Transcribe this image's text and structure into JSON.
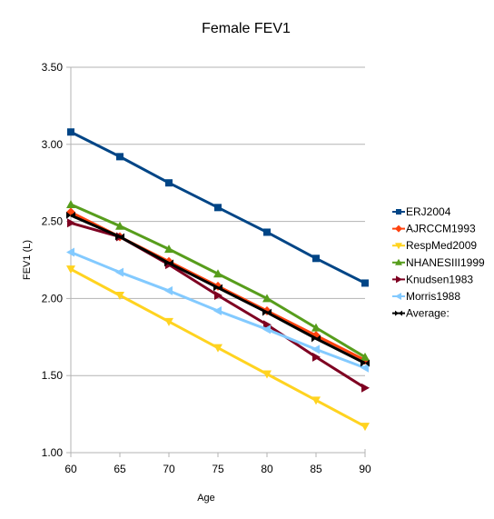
{
  "chart_data": {
    "type": "line",
    "title": "Female FEV1",
    "xlabel": "Age",
    "ylabel": "FEV1 (L)",
    "x": [
      60,
      65,
      70,
      75,
      80,
      85,
      90
    ],
    "x_tick_labels": [
      "60",
      "65",
      "70",
      "75",
      "80",
      "85",
      "90"
    ],
    "ylim": [
      1.0,
      3.5
    ],
    "y_ticks": [
      1.0,
      1.5,
      2.0,
      2.5,
      3.0,
      3.5
    ],
    "y_tick_labels": [
      "1.00",
      "1.50",
      "2.00",
      "2.50",
      "3.00",
      "3.50"
    ],
    "grid": "horizontal",
    "legend_position": "right",
    "series": [
      {
        "name": "ERJ2004",
        "color": "#004586",
        "marker": "square",
        "values": [
          3.08,
          2.92,
          2.75,
          2.59,
          2.43,
          2.26,
          2.1
        ]
      },
      {
        "name": "AJRCCM1993",
        "color": "#ff420e",
        "marker": "diamond",
        "values": [
          2.56,
          2.4,
          2.24,
          2.08,
          1.92,
          1.76,
          1.6
        ]
      },
      {
        "name": "RespMed2009",
        "color": "#ffd320",
        "marker": "triangle-down",
        "values": [
          2.19,
          2.02,
          1.85,
          1.68,
          1.51,
          1.34,
          1.17
        ]
      },
      {
        "name": "NHANESIII1999",
        "color": "#579d1c",
        "marker": "triangle-up",
        "values": [
          2.61,
          2.47,
          2.32,
          2.16,
          2.0,
          1.81,
          1.62
        ]
      },
      {
        "name": "Knudsen1983",
        "color": "#7e0021",
        "marker": "triangle-right",
        "values": [
          2.49,
          2.4,
          2.22,
          2.02,
          1.83,
          1.62,
          1.42
        ]
      },
      {
        "name": "Morris1988",
        "color": "#83caff",
        "marker": "triangle-left",
        "values": [
          2.3,
          2.17,
          2.05,
          1.92,
          1.8,
          1.67,
          1.55
        ]
      },
      {
        "name": "Average:",
        "color": "#000000",
        "marker": "bowtie",
        "values": [
          2.54,
          2.4,
          2.23,
          2.07,
          1.91,
          1.74,
          1.58
        ]
      }
    ]
  }
}
